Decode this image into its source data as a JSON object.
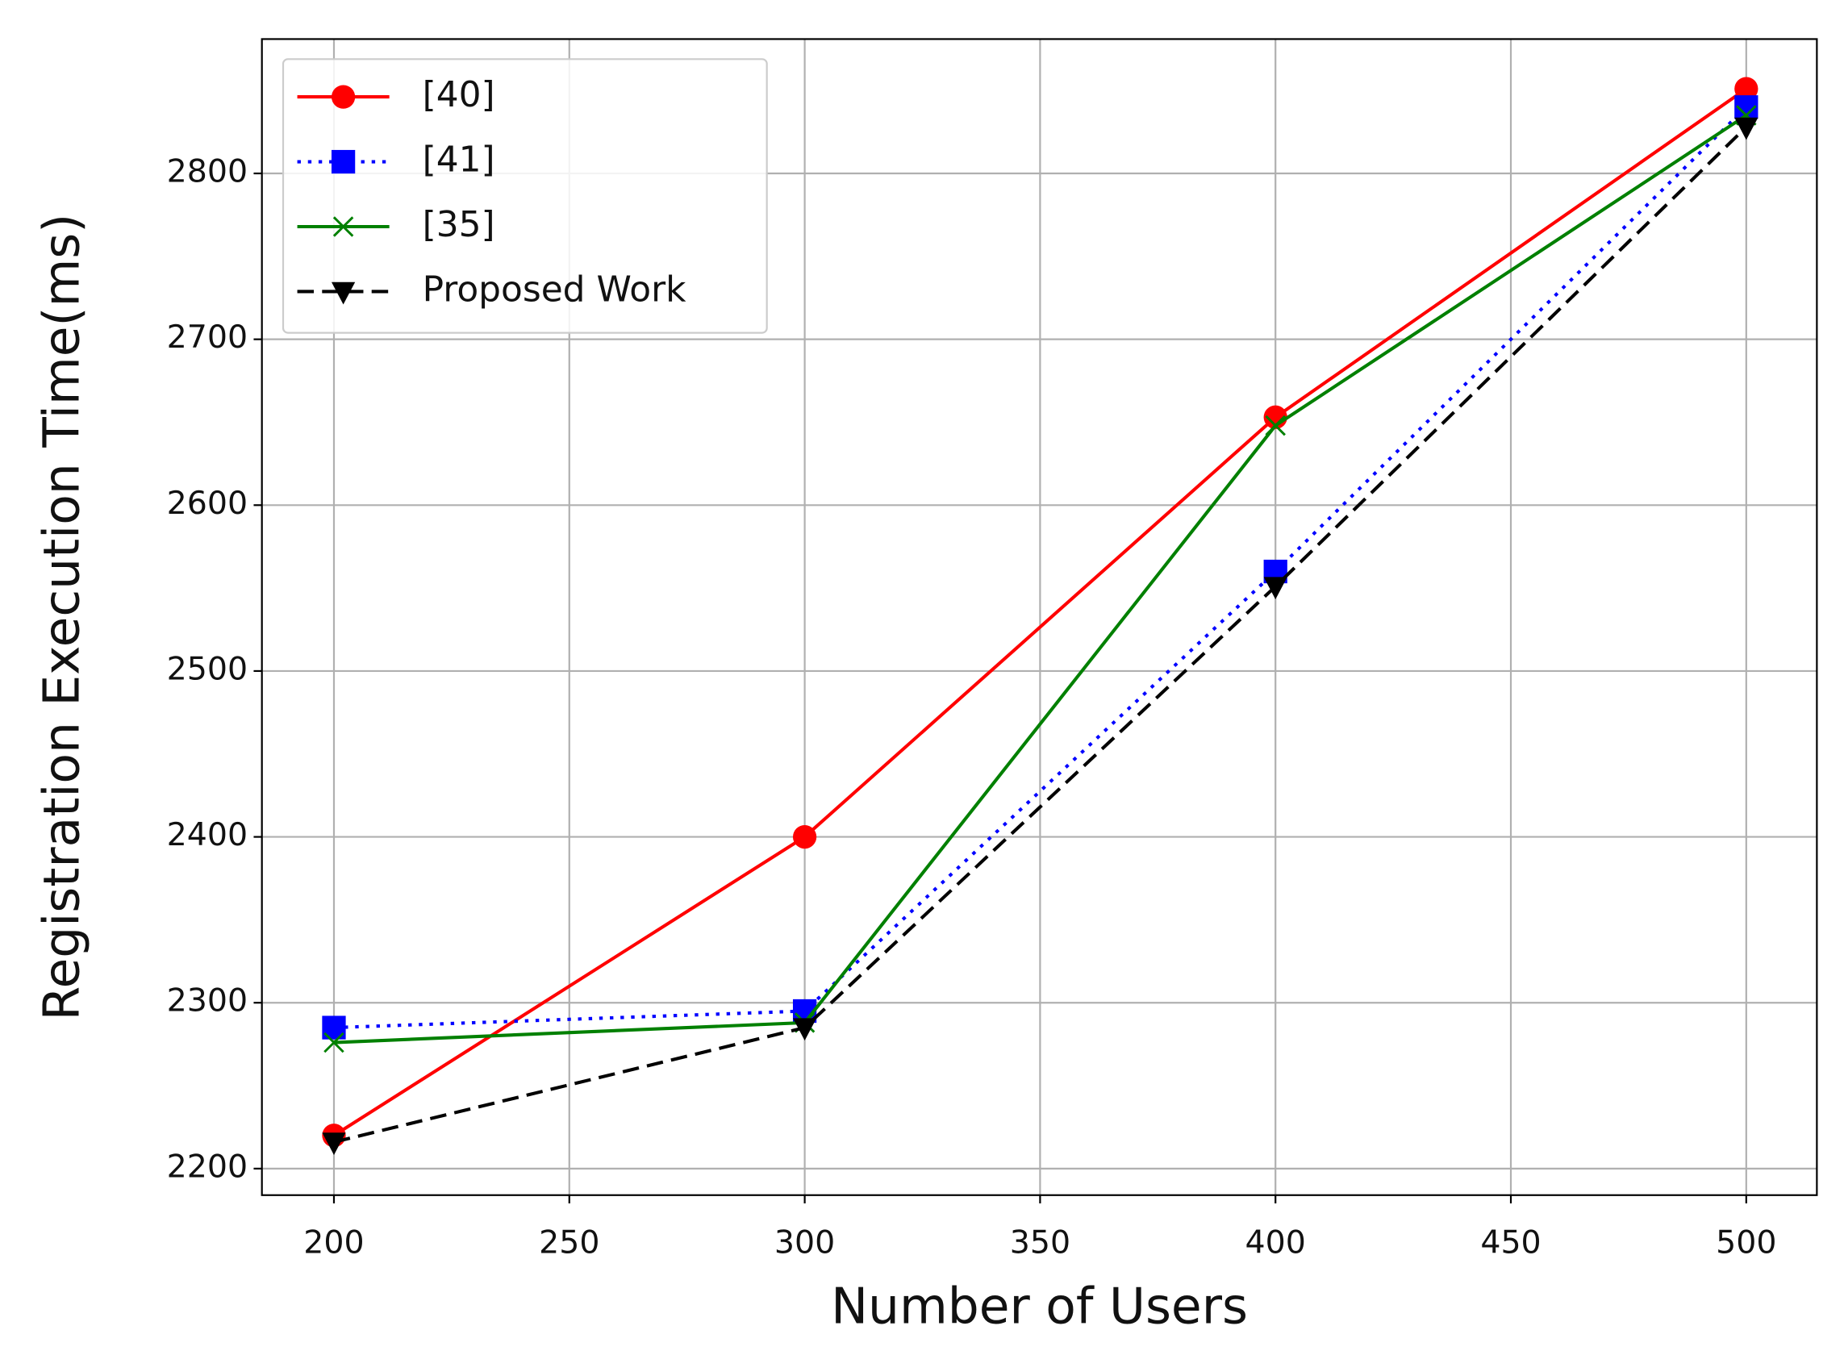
{
  "chart_data": {
    "type": "line",
    "x_label": "Number of Users",
    "y_label": "Registration Execution Time(ms)",
    "x": [
      200,
      300,
      400,
      500
    ],
    "series": [
      {
        "name": "[40]",
        "color": "#ff0000",
        "marker": "circle",
        "linestyle": "solid",
        "values": [
          2220,
          2400,
          2653,
          2851
        ]
      },
      {
        "name": "[41]",
        "color": "#0000ff",
        "marker": "square",
        "linestyle": "dotted",
        "values": [
          2285,
          2295,
          2560,
          2840
        ]
      },
      {
        "name": "[35]",
        "color": "#008000",
        "marker": "x",
        "linestyle": "solid",
        "values": [
          2276,
          2288,
          2648,
          2835
        ]
      },
      {
        "name": "Proposed Work",
        "color": "#000000",
        "marker": "triangle-down",
        "linestyle": "dashed",
        "values": [
          2216,
          2285,
          2551,
          2828
        ]
      }
    ],
    "xlim": [
      184.7,
      515
    ],
    "ylim": [
      2184,
      2881
    ],
    "xticks": [
      200,
      250,
      300,
      350,
      400,
      450,
      500
    ],
    "yticks": [
      2200,
      2300,
      2400,
      2500,
      2600,
      2700,
      2800
    ],
    "grid": true,
    "legend": "upper left"
  }
}
